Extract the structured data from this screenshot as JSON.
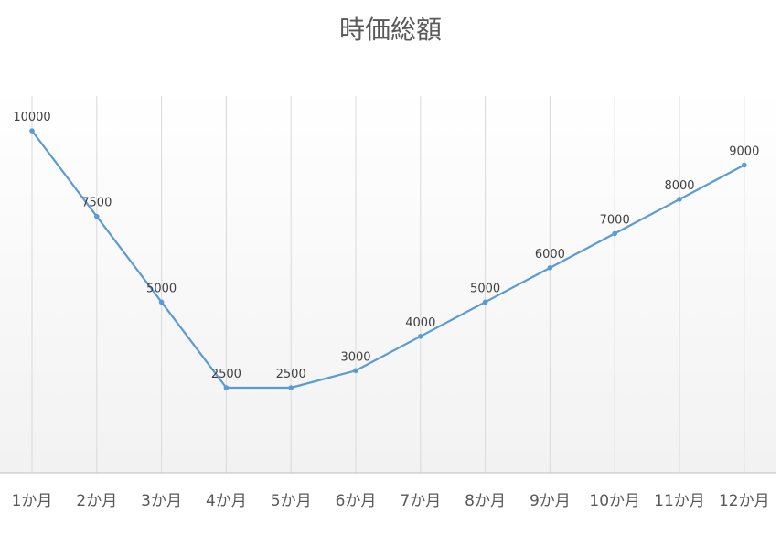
{
  "chart_data": {
    "type": "line",
    "title": "時価総額",
    "xlabel": "",
    "ylabel": "",
    "categories": [
      "1か月",
      "2か月",
      "3か月",
      "4か月",
      "5か月",
      "6か月",
      "7か月",
      "8か月",
      "9か月",
      "10か月",
      "11か月",
      "12か月"
    ],
    "series": [
      {
        "values": [
          10000,
          7500,
          5000,
          2500,
          2500,
          3000,
          4000,
          5000,
          6000,
          7000,
          8000,
          9000
        ]
      }
    ],
    "data_labels": true,
    "gridlines": "vertical",
    "legend": "none",
    "colors": {
      "line": "#5B9BD5",
      "grid": "#D9D9D9",
      "axis": "#BFBFBF",
      "text": "#595959",
      "plot_gradient_top": "#FFFFFF",
      "plot_gradient_bottom": "#F2F2F2"
    }
  }
}
